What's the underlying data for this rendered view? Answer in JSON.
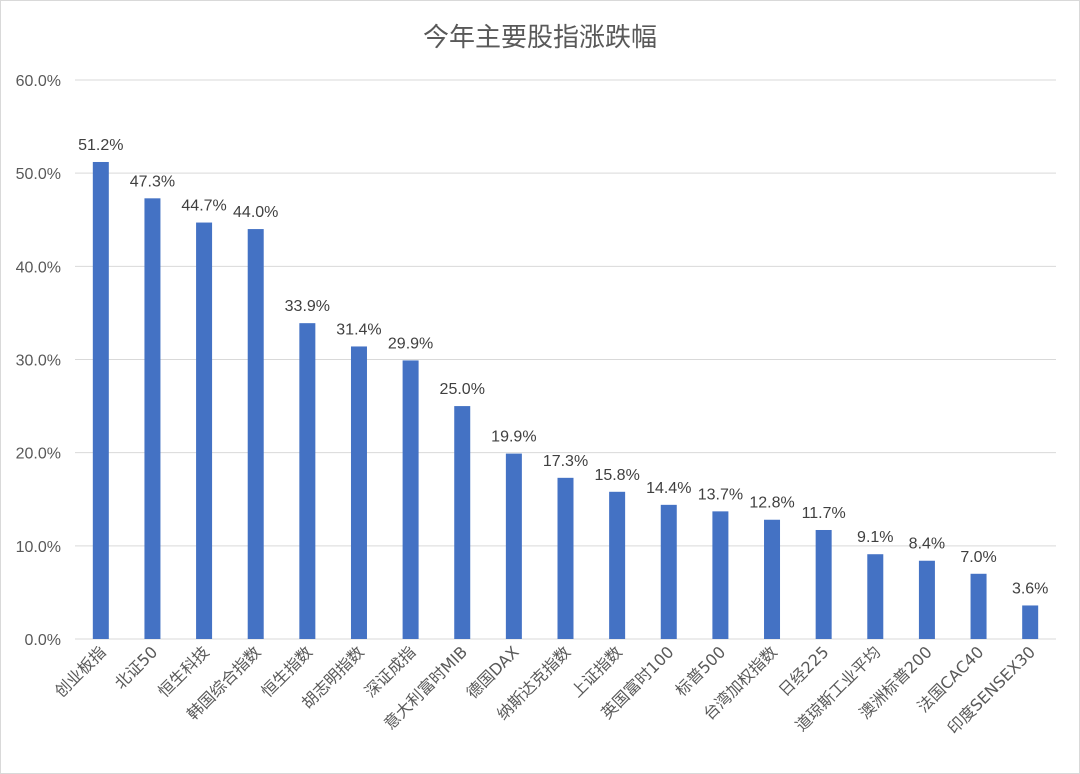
{
  "chart_data": {
    "type": "bar",
    "title": "今年主要股指涨跌幅",
    "xlabel": "",
    "ylabel": "",
    "ylim": [
      0,
      60
    ],
    "yticks": [
      "0.0%",
      "10.0%",
      "20.0%",
      "30.0%",
      "40.0%",
      "50.0%",
      "60.0%"
    ],
    "grid": true,
    "legend": "none",
    "bar_color": "#4472C4",
    "categories": [
      "创业板指",
      "北证50",
      "恒生科技",
      "韩国综合指数",
      "恒生指数",
      "胡志明指数",
      "深证成指",
      "意大利富时MIB",
      "德国DAX",
      "纳斯达克指数",
      "上证指数",
      "英国富时100",
      "标普500",
      "台湾加权指数",
      "日经225",
      "道琼斯工业平均",
      "澳洲标普200",
      "法国CAC40",
      "印度SENSEX30"
    ],
    "values": [
      51.2,
      47.3,
      44.7,
      44.0,
      33.9,
      31.4,
      29.9,
      25.0,
      19.9,
      17.3,
      15.8,
      14.4,
      13.7,
      12.8,
      11.7,
      9.1,
      8.4,
      7.0,
      3.6
    ],
    "data_labels": [
      "51.2%",
      "47.3%",
      "44.7%",
      "44.0%",
      "33.9%",
      "31.4%",
      "29.9%",
      "25.0%",
      "19.9%",
      "17.3%",
      "15.8%",
      "14.4%",
      "13.7%",
      "12.8%",
      "11.7%",
      "9.1%",
      "8.4%",
      "7.0%",
      "3.6%"
    ]
  }
}
